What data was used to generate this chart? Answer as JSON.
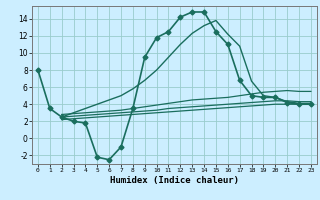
{
  "xlabel": "Humidex (Indice chaleur)",
  "bg_color": "#cceeff",
  "grid_color": "#99cccc",
  "line_color": "#1a6e5e",
  "xlim": [
    -0.5,
    23.5
  ],
  "ylim": [
    -3,
    15.5
  ],
  "xticks": [
    0,
    1,
    2,
    3,
    4,
    5,
    6,
    7,
    8,
    9,
    10,
    11,
    12,
    13,
    14,
    15,
    16,
    17,
    18,
    19,
    20,
    21,
    22,
    23
  ],
  "yticks": [
    -2,
    0,
    2,
    4,
    6,
    8,
    10,
    12,
    14
  ],
  "series": [
    {
      "x": [
        0,
        1,
        2,
        3,
        4,
        5,
        6,
        7,
        8,
        9,
        10,
        11,
        12,
        13,
        14,
        15,
        16,
        17,
        18,
        19,
        20,
        21,
        22,
        23
      ],
      "y": [
        8,
        3.5,
        2.5,
        2.0,
        1.8,
        -2.2,
        -2.5,
        -1.0,
        3.5,
        9.5,
        11.8,
        12.5,
        14.2,
        14.8,
        14.8,
        12.5,
        11.0,
        6.8,
        5.0,
        4.8,
        4.8,
        4.2,
        4.0,
        4.0
      ],
      "lw": 1.2,
      "marker": true,
      "ms": 2.5
    },
    {
      "x": [
        2,
        3,
        4,
        5,
        6,
        7,
        8,
        9,
        10,
        11,
        12,
        13,
        14,
        15,
        16,
        17,
        18,
        19,
        20,
        21,
        22,
        23
      ],
      "y": [
        2.5,
        3.0,
        3.5,
        4.0,
        4.5,
        5.0,
        5.8,
        6.8,
        8.0,
        9.5,
        11.0,
        12.3,
        13.2,
        13.8,
        12.2,
        10.8,
        6.7,
        5.0,
        4.8,
        4.3,
        4.1,
        4.1
      ],
      "lw": 1.0,
      "marker": false,
      "ms": 0
    },
    {
      "x": [
        2,
        3,
        4,
        5,
        6,
        7,
        8,
        9,
        10,
        11,
        12,
        13,
        14,
        15,
        16,
        17,
        18,
        19,
        20,
        21,
        22,
        23
      ],
      "y": [
        2.8,
        2.9,
        3.0,
        3.1,
        3.2,
        3.3,
        3.5,
        3.7,
        3.9,
        4.1,
        4.3,
        4.5,
        4.6,
        4.7,
        4.8,
        5.0,
        5.2,
        5.4,
        5.5,
        5.6,
        5.5,
        5.5
      ],
      "lw": 0.9,
      "marker": false,
      "ms": 0
    },
    {
      "x": [
        2,
        3,
        4,
        5,
        6,
        7,
        8,
        9,
        10,
        11,
        12,
        13,
        14,
        15,
        16,
        17,
        18,
        19,
        20,
        21,
        22,
        23
      ],
      "y": [
        2.5,
        2.6,
        2.7,
        2.8,
        2.9,
        3.0,
        3.1,
        3.2,
        3.3,
        3.5,
        3.6,
        3.7,
        3.8,
        3.9,
        4.0,
        4.1,
        4.2,
        4.3,
        4.4,
        4.4,
        4.3,
        4.3
      ],
      "lw": 0.9,
      "marker": false,
      "ms": 0
    },
    {
      "x": [
        2,
        3,
        4,
        5,
        6,
        7,
        8,
        9,
        10,
        11,
        12,
        13,
        14,
        15,
        16,
        17,
        18,
        19,
        20,
        21,
        22,
        23
      ],
      "y": [
        2.2,
        2.3,
        2.4,
        2.5,
        2.6,
        2.7,
        2.8,
        2.9,
        3.0,
        3.1,
        3.2,
        3.3,
        3.4,
        3.5,
        3.6,
        3.7,
        3.8,
        3.9,
        4.0,
        4.0,
        4.0,
        4.0
      ],
      "lw": 0.9,
      "marker": false,
      "ms": 0
    }
  ]
}
